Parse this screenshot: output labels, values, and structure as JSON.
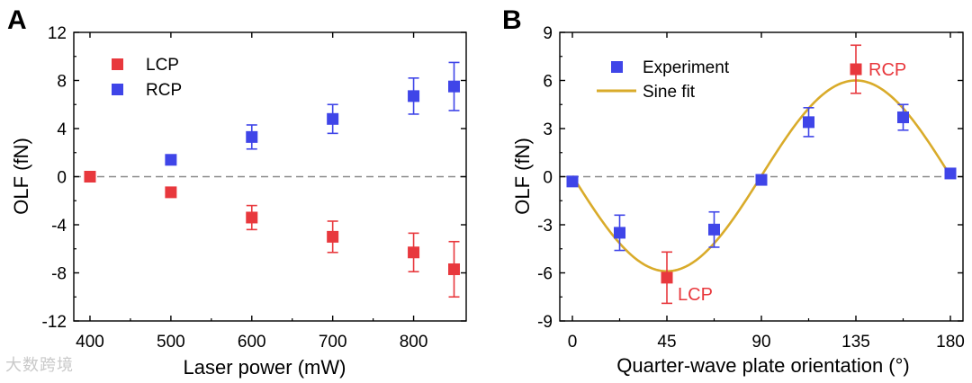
{
  "watermark": "大数跨境",
  "colors": {
    "lcp": "#e8383d",
    "rcp": "#3f45e8",
    "fit": "#d9ab2a",
    "zero_line": "#8a8a8a",
    "axis": "#000000"
  },
  "chart_data": [
    {
      "panel": "A",
      "type": "scatter",
      "xlabel": "Laser power (mW)",
      "ylabel": "OLF (fN)",
      "xlim": [
        380,
        865
      ],
      "ylim": [
        -12,
        12
      ],
      "xticks": [
        400,
        500,
        600,
        700,
        800
      ],
      "yticks": [
        -12,
        -8,
        -4,
        0,
        4,
        8,
        12
      ],
      "tick_labels_x": [
        "400",
        "500",
        "600",
        "700",
        "800"
      ],
      "tick_labels_y": [
        "-12",
        "-8",
        "-4",
        "0",
        "4",
        "8",
        "12"
      ],
      "zero_line": true,
      "legend_position": "top-left",
      "series": [
        {
          "name": "LCP",
          "color": "#e8383d",
          "x": [
            400,
            500,
            600,
            700,
            800,
            850
          ],
          "y": [
            0,
            -1.3,
            -3.4,
            -5.0,
            -6.3,
            -7.7
          ],
          "err": [
            0,
            0,
            1.0,
            1.3,
            1.6,
            2.3
          ]
        },
        {
          "name": "RCP",
          "color": "#3f45e8",
          "x": [
            500,
            600,
            700,
            800,
            850
          ],
          "y": [
            1.4,
            3.3,
            4.8,
            6.7,
            7.5
          ],
          "err": [
            0,
            1.0,
            1.2,
            1.5,
            2.0
          ]
        }
      ]
    },
    {
      "panel": "B",
      "type": "scatter",
      "xlabel": "Quarter-wave plate orientation (°)",
      "ylabel": "OLF (fN)",
      "xlim": [
        -6,
        186
      ],
      "ylim": [
        -9,
        9
      ],
      "xticks": [
        0,
        45,
        90,
        135,
        180
      ],
      "yticks": [
        -9,
        -6,
        -3,
        0,
        3,
        6,
        9
      ],
      "tick_labels_x": [
        "0",
        "45",
        "90",
        "135",
        "180"
      ],
      "tick_labels_y": [
        "-9",
        "-6",
        "-3",
        "0",
        "3",
        "6",
        "9"
      ],
      "zero_line": true,
      "legend_position": "top-left",
      "series": [
        {
          "name": "Experiment",
          "color": "#3f45e8",
          "x": [
            0,
            22.5,
            45,
            67.5,
            90,
            112.5,
            135,
            157.5,
            180
          ],
          "y": [
            -0.3,
            -3.5,
            -6.3,
            -3.3,
            -0.2,
            3.4,
            6.7,
            3.7,
            0.2
          ],
          "err": [
            0,
            1.1,
            1.6,
            1.1,
            0,
            0.9,
            1.5,
            0.8,
            0
          ],
          "highlight_color": "#e8383d",
          "highlight_x": [
            45,
            135
          ]
        },
        {
          "name": "Sine fit",
          "color": "#d9ab2a",
          "function": "y = 0.05 - 5.95*sin(2*x deg)",
          "x_range": [
            0,
            180
          ]
        }
      ],
      "annotations": [
        {
          "text": "LCP",
          "x": 45,
          "y": -6.3,
          "color": "#e8383d"
        },
        {
          "text": "RCP",
          "x": 135,
          "y": 6.7,
          "color": "#e8383d"
        }
      ]
    }
  ]
}
